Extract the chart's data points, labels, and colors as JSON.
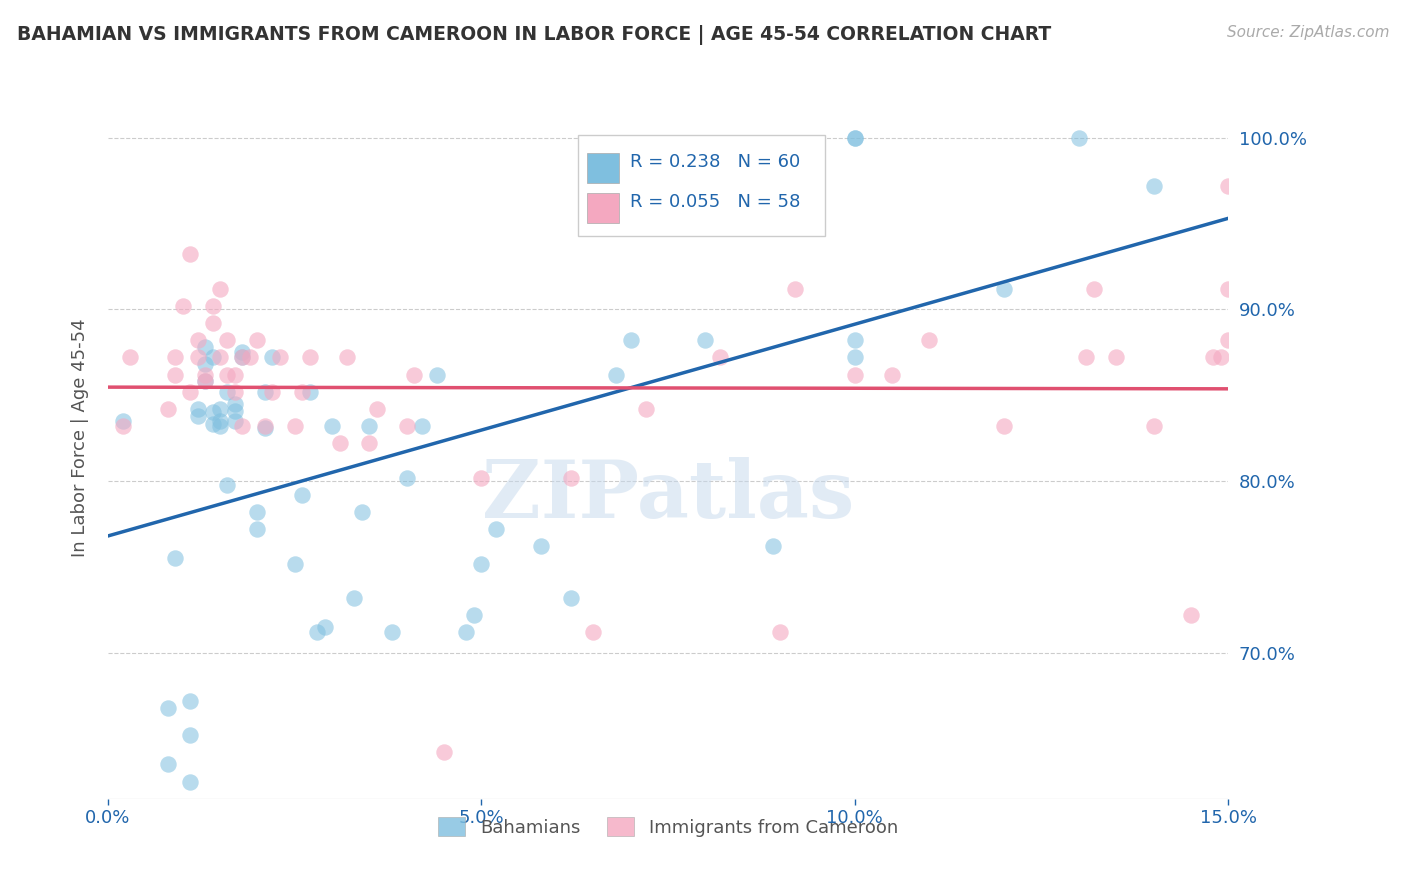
{
  "title": "BAHAMIAN VS IMMIGRANTS FROM CAMEROON IN LABOR FORCE | AGE 45-54 CORRELATION CHART",
  "source": "Source: ZipAtlas.com",
  "ylabel": "In Labor Force | Age 45-54",
  "xmin": 0.0,
  "xmax": 0.15,
  "ymin": 0.615,
  "ymax": 1.035,
  "yticks": [
    0.7,
    0.8,
    0.9,
    1.0
  ],
  "ytick_labels": [
    "70.0%",
    "80.0%",
    "90.0%",
    "100.0%"
  ],
  "xticks": [
    0.0,
    0.05,
    0.1,
    0.15
  ],
  "xtick_labels": [
    "0.0%",
    "5.0%",
    "10.0%",
    "15.0%"
  ],
  "blue_color": "#7fbfdf",
  "pink_color": "#f4a8c0",
  "blue_line_color": "#2166ac",
  "pink_line_color": "#e05070",
  "R_blue": 0.238,
  "N_blue": 60,
  "R_pink": 0.055,
  "N_pink": 58,
  "blue_scatter_x": [
    0.002,
    0.008,
    0.008,
    0.009,
    0.011,
    0.011,
    0.011,
    0.012,
    0.012,
    0.013,
    0.013,
    0.013,
    0.014,
    0.014,
    0.014,
    0.015,
    0.015,
    0.015,
    0.016,
    0.016,
    0.017,
    0.017,
    0.017,
    0.018,
    0.018,
    0.02,
    0.02,
    0.021,
    0.021,
    0.022,
    0.025,
    0.026,
    0.027,
    0.028,
    0.029,
    0.03,
    0.033,
    0.034,
    0.035,
    0.038,
    0.04,
    0.042,
    0.044,
    0.048,
    0.049,
    0.05,
    0.052,
    0.058,
    0.062,
    0.068,
    0.07,
    0.08,
    0.089,
    0.1,
    0.1,
    0.1,
    0.1,
    0.12,
    0.13,
    0.14
  ],
  "blue_scatter_y": [
    0.835,
    0.635,
    0.668,
    0.755,
    0.625,
    0.652,
    0.672,
    0.838,
    0.842,
    0.858,
    0.868,
    0.878,
    0.833,
    0.84,
    0.872,
    0.832,
    0.835,
    0.842,
    0.852,
    0.798,
    0.835,
    0.841,
    0.845,
    0.872,
    0.875,
    0.772,
    0.782,
    0.831,
    0.852,
    0.872,
    0.752,
    0.792,
    0.852,
    0.712,
    0.715,
    0.832,
    0.732,
    0.782,
    0.832,
    0.712,
    0.802,
    0.832,
    0.862,
    0.712,
    0.722,
    0.752,
    0.772,
    0.762,
    0.732,
    0.862,
    0.882,
    0.882,
    0.762,
    0.872,
    0.882,
    1.0,
    1.0,
    0.912,
    1.0,
    0.972
  ],
  "pink_scatter_x": [
    0.002,
    0.003,
    0.008,
    0.009,
    0.009,
    0.01,
    0.011,
    0.011,
    0.012,
    0.012,
    0.013,
    0.013,
    0.014,
    0.014,
    0.015,
    0.015,
    0.016,
    0.016,
    0.017,
    0.017,
    0.018,
    0.018,
    0.019,
    0.02,
    0.021,
    0.022,
    0.023,
    0.025,
    0.026,
    0.027,
    0.031,
    0.032,
    0.035,
    0.036,
    0.04,
    0.041,
    0.045,
    0.05,
    0.062,
    0.065,
    0.072,
    0.082,
    0.09,
    0.092,
    0.1,
    0.105,
    0.11,
    0.12,
    0.131,
    0.132,
    0.135,
    0.14,
    0.145,
    0.148,
    0.149,
    0.15,
    0.15,
    0.15
  ],
  "pink_scatter_y": [
    0.832,
    0.872,
    0.842,
    0.862,
    0.872,
    0.902,
    0.932,
    0.852,
    0.882,
    0.872,
    0.858,
    0.862,
    0.892,
    0.902,
    0.912,
    0.872,
    0.882,
    0.862,
    0.852,
    0.862,
    0.872,
    0.832,
    0.872,
    0.882,
    0.832,
    0.852,
    0.872,
    0.832,
    0.852,
    0.872,
    0.822,
    0.872,
    0.822,
    0.842,
    0.832,
    0.862,
    0.642,
    0.802,
    0.802,
    0.712,
    0.842,
    0.872,
    0.712,
    0.912,
    0.862,
    0.862,
    0.882,
    0.832,
    0.872,
    0.912,
    0.872,
    0.832,
    0.722,
    0.872,
    0.872,
    0.882,
    0.912,
    0.972
  ],
  "watermark": "ZIPatlas",
  "legend_label_blue": "Bahamians",
  "legend_label_pink": "Immigrants from Cameroon"
}
